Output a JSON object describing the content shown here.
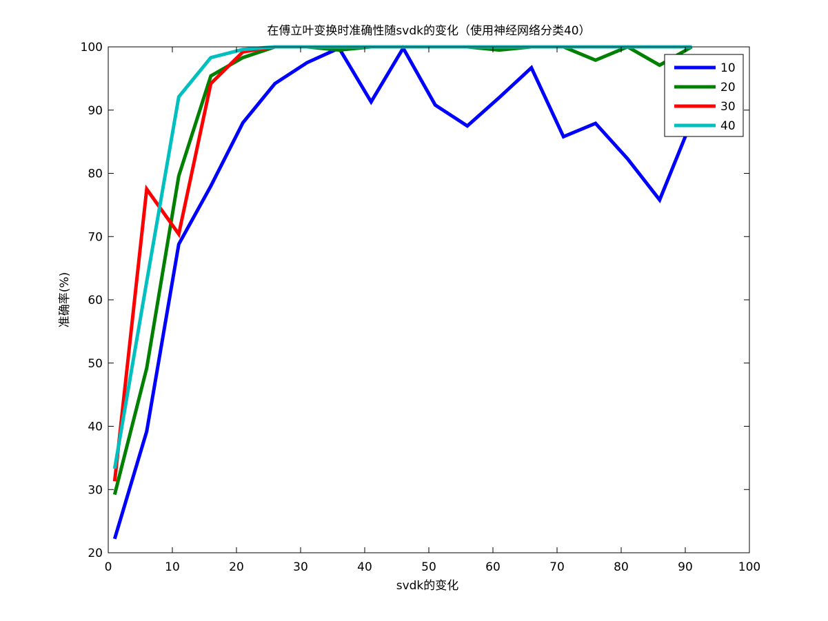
{
  "chart_data": {
    "type": "line",
    "title": "在傅立叶变换时准确性随svdk的变化（使用神经网络分类40）",
    "xlabel": "svdk的变化",
    "ylabel": "准确率(%)",
    "xlim": [
      0,
      100
    ],
    "ylim": [
      20,
      100
    ],
    "xticks": [
      0,
      10,
      20,
      30,
      40,
      50,
      60,
      70,
      80,
      90,
      100
    ],
    "yticks": [
      20,
      30,
      40,
      50,
      60,
      70,
      80,
      90,
      100
    ],
    "grid": false,
    "legend_position": "top-right",
    "x": [
      1,
      6,
      11,
      16,
      21,
      26,
      31,
      36,
      41,
      46,
      51,
      56,
      61,
      66,
      71,
      76,
      81,
      86,
      91
    ],
    "series": [
      {
        "name": "10",
        "color": "#0000ff",
        "values": [
          22.2,
          39.2,
          68.8,
          78.0,
          88.0,
          94.2,
          97.5,
          99.8,
          91.3,
          99.8,
          90.8,
          87.5,
          92.0,
          96.7,
          85.8,
          87.9,
          82.3,
          75.8,
          88.3
        ]
      },
      {
        "name": "20",
        "color": "#008000",
        "values": [
          29.2,
          49.2,
          79.6,
          95.4,
          98.3,
          100,
          100,
          99.5,
          100,
          100,
          100,
          100,
          99.5,
          100,
          100,
          97.9,
          100,
          97.1,
          100
        ]
      },
      {
        "name": "30",
        "color": "#ff0000",
        "values": [
          31.3,
          77.5,
          70.4,
          94.2,
          99.2,
          100,
          100,
          100,
          100,
          100,
          100,
          100,
          100,
          100,
          100,
          100,
          100,
          100,
          100
        ]
      },
      {
        "name": "40",
        "color": "#00bfbf",
        "values": [
          33.3,
          62.9,
          92.1,
          98.3,
          99.6,
          100,
          100,
          100,
          100,
          100,
          100,
          100,
          100,
          100,
          100,
          100,
          100,
          100,
          100
        ]
      }
    ]
  }
}
